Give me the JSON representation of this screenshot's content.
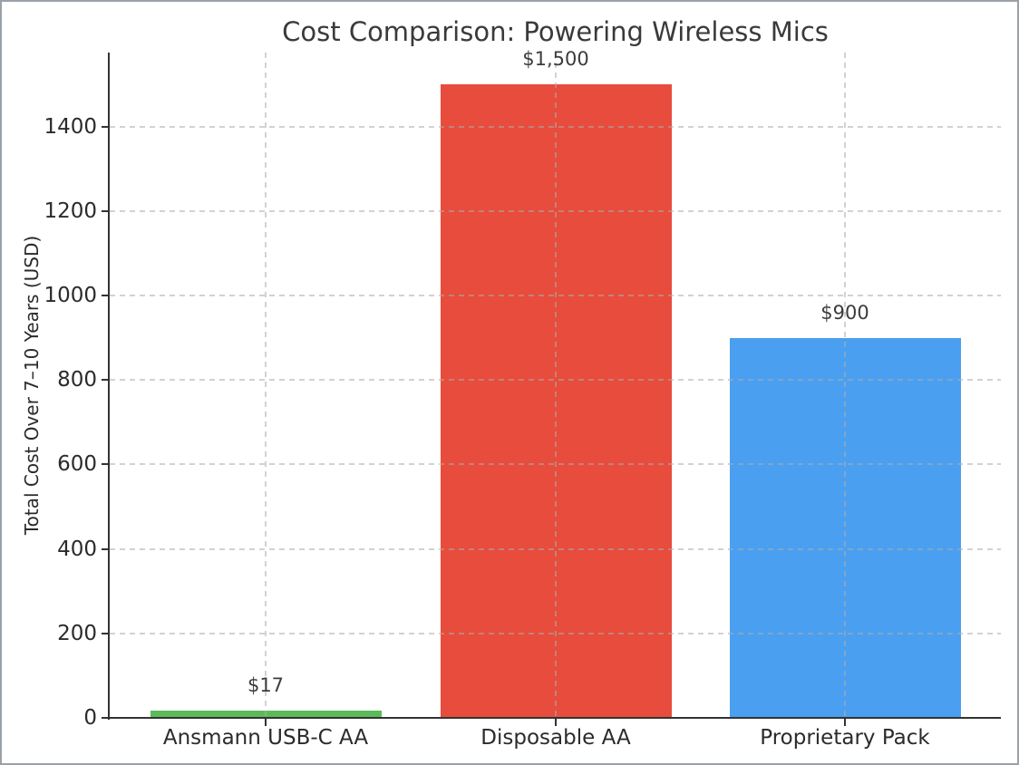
{
  "figure": {
    "background": "#ffffff",
    "border_color": "#9ba1a8"
  },
  "chart_data": {
    "type": "bar",
    "title": "Cost Comparison: Powering Wireless Mics",
    "xlabel": "",
    "ylabel": "Total Cost Over 7–10 Years (USD)",
    "categories": [
      "Ansmann USB-C AA",
      "Disposable AA",
      "Proprietary Pack"
    ],
    "values": [
      17,
      1500,
      900
    ],
    "value_labels": [
      "$17",
      "$1,500",
      "$900"
    ],
    "bar_colors": [
      "#5bbb5a",
      "#e74c3c",
      "#4a9ff0"
    ],
    "ylim": [
      0,
      1575
    ],
    "yticks": [
      0,
      200,
      400,
      600,
      800,
      1000,
      1200,
      1400
    ],
    "grid": {
      "style": "dashed",
      "horizontal": true,
      "vertical": true,
      "drawn_over_bars": true
    },
    "legend": "none"
  },
  "styles": {
    "title_color": "#3a3a3a",
    "text_color": "#2b2b2b",
    "value_label_color": "#3c3c3c",
    "spine_color": "#333333",
    "grid_rgba": "rgba(172,172,172,0.55)"
  }
}
